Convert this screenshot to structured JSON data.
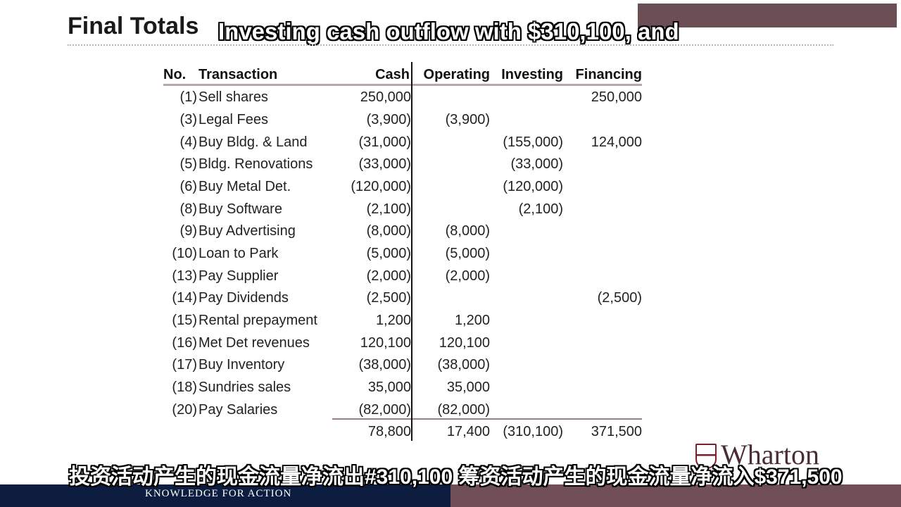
{
  "slide": {
    "title": "Final Totals",
    "caption_en": "Investing cash outflow with $310,100, and",
    "caption_zh": "投资活动产生的现金流量净流出#310,100 筹资活动产生的现金流量净流入$371,500"
  },
  "table": {
    "headers": {
      "no": "No.",
      "transaction": "Transaction",
      "cash": "Cash",
      "operating": "Operating",
      "investing": "Investing",
      "financing": "Financing"
    },
    "rows": [
      {
        "no": "(1)",
        "transaction": "Sell shares",
        "cash": "250,000",
        "operating": "",
        "investing": "",
        "financing": "250,000"
      },
      {
        "no": "(3)",
        "transaction": "Legal Fees",
        "cash": "(3,900)",
        "operating": "(3,900)",
        "investing": "",
        "financing": ""
      },
      {
        "no": "(4)",
        "transaction": "Buy Bldg. & Land",
        "cash": "(31,000)",
        "operating": "",
        "investing": "(155,000)",
        "financing": "124,000"
      },
      {
        "no": "(5)",
        "transaction": "Bldg. Renovations",
        "cash": "(33,000)",
        "operating": "",
        "investing": "(33,000)",
        "financing": ""
      },
      {
        "no": "(6)",
        "transaction": "Buy Metal Det.",
        "cash": "(120,000)",
        "operating": "",
        "investing": "(120,000)",
        "financing": ""
      },
      {
        "no": "(8)",
        "transaction": "Buy Software",
        "cash": "(2,100)",
        "operating": "",
        "investing": "(2,100)",
        "financing": ""
      },
      {
        "no": "(9)",
        "transaction": "Buy Advertising",
        "cash": "(8,000)",
        "operating": "(8,000)",
        "investing": "",
        "financing": ""
      },
      {
        "no": "(10)",
        "transaction": "Loan to Park",
        "cash": "(5,000)",
        "operating": "(5,000)",
        "investing": "",
        "financing": ""
      },
      {
        "no": "(13)",
        "transaction": "Pay Supplier",
        "cash": "(2,000)",
        "operating": "(2,000)",
        "investing": "",
        "financing": ""
      },
      {
        "no": "(14)",
        "transaction": "Pay Dividends",
        "cash": "(2,500)",
        "operating": "",
        "investing": "",
        "financing": "(2,500)"
      },
      {
        "no": "(15)",
        "transaction": "Rental prepayment",
        "cash": "1,200",
        "operating": "1,200",
        "investing": "",
        "financing": ""
      },
      {
        "no": "(16)",
        "transaction": "Met Det revenues",
        "cash": "120,100",
        "operating": "120,100",
        "investing": "",
        "financing": ""
      },
      {
        "no": "(17)",
        "transaction": "Buy Inventory",
        "cash": "(38,000)",
        "operating": "(38,000)",
        "investing": "",
        "financing": ""
      },
      {
        "no": "(18)",
        "transaction": "Sundries sales",
        "cash": "35,000",
        "operating": "35,000",
        "investing": "",
        "financing": ""
      },
      {
        "no": "(20)",
        "transaction": "Pay Salaries",
        "cash": "(82,000)",
        "operating": "(82,000)",
        "investing": "",
        "financing": ""
      }
    ],
    "totals": {
      "cash": "78,800",
      "operating": "17,400",
      "investing": "(310,100)",
      "financing": "371,500"
    }
  },
  "branding": {
    "logo_text": "Wharton",
    "tagline": "KNOWLEDGE FOR ACTION"
  },
  "colors": {
    "footer_navy": "#0c1d3f",
    "footer_maroon": "#704e55",
    "rule_maroon": "#9c7f83"
  }
}
